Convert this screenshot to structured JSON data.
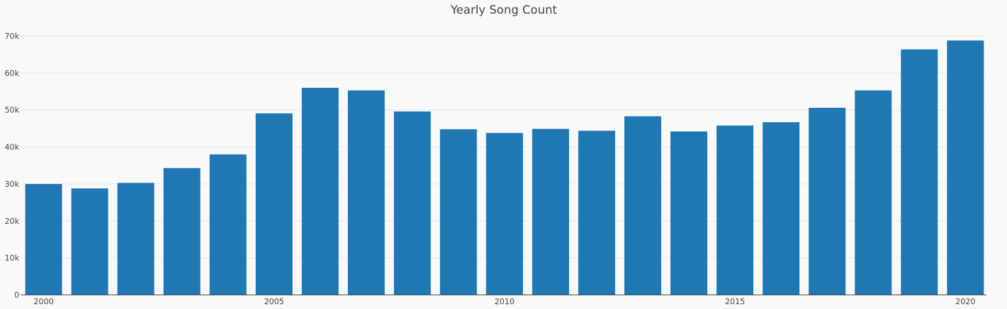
{
  "chart_data": {
    "type": "bar",
    "title": "Yearly Song Count",
    "xlabel": "",
    "ylabel": "",
    "x": [
      2000,
      2001,
      2002,
      2003,
      2004,
      2005,
      2006,
      2007,
      2008,
      2009,
      2010,
      2011,
      2012,
      2013,
      2014,
      2015,
      2016,
      2017,
      2018,
      2019,
      2020
    ],
    "values": [
      30000,
      28800,
      30300,
      34300,
      38000,
      49100,
      56000,
      55300,
      49600,
      44800,
      43800,
      44900,
      44400,
      48300,
      44200,
      45800,
      46700,
      50600,
      55300,
      66400,
      68800
    ],
    "x_ticks": [
      2000,
      2005,
      2010,
      2015,
      2020
    ],
    "x_tick_labels": [
      "2000",
      "2005",
      "2010",
      "2015",
      "2020"
    ],
    "y_ticks": [
      0,
      10000,
      20000,
      30000,
      40000,
      50000,
      60000,
      70000
    ],
    "y_tick_labels": [
      "0",
      "10k",
      "20k",
      "30k",
      "40k",
      "50k",
      "60k",
      "70k"
    ],
    "ylim": [
      0,
      70000
    ],
    "grid": true,
    "legend": "none",
    "bar_color": "#1f77b4",
    "background_color": "#f9f9f9"
  }
}
